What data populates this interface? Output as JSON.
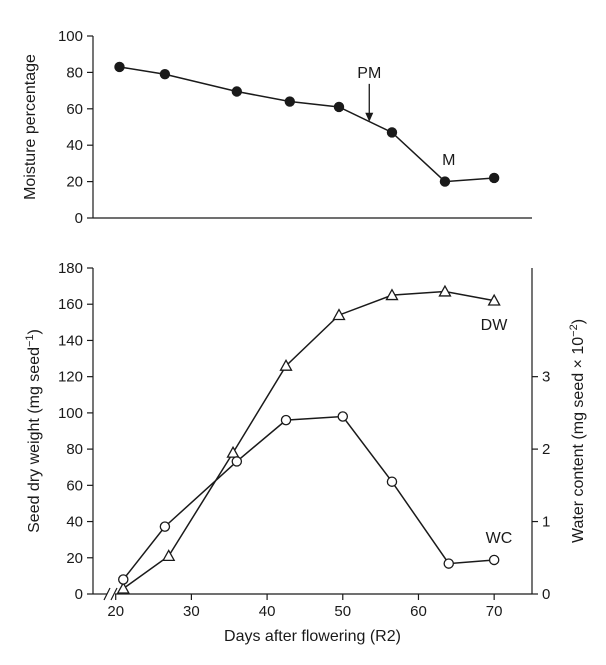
{
  "chart_data": [
    {
      "type": "line",
      "ylabel": "Moisture percentage",
      "ylim": [
        0,
        100
      ],
      "yticks": [
        0,
        20,
        40,
        60,
        80,
        100
      ],
      "xlim": [
        17,
        75
      ],
      "series": [
        {
          "name": "",
          "marker": "filled-circle",
          "x": [
            20.5,
            26.5,
            36,
            43,
            49.5,
            56.5,
            63.5,
            70
          ],
          "y": [
            83,
            79,
            69.5,
            64,
            61,
            47,
            20,
            22
          ]
        }
      ],
      "annotations": [
        {
          "label": "PM",
          "x": 53.5,
          "y": 77,
          "arrow_to_y": 54
        },
        {
          "label": "M",
          "x": 64,
          "y": 29
        }
      ]
    },
    {
      "type": "line",
      "xlabel": "Days after flowering (R2)",
      "ylabel": "Seed dry weight (mg seed⁻¹)",
      "y2label": "Water content (mg seed × 10⁻²)",
      "xlim": [
        17,
        75
      ],
      "xticks": [
        20,
        30,
        40,
        50,
        60,
        70
      ],
      "ylim": [
        0,
        180
      ],
      "yticks": [
        0,
        20,
        40,
        60,
        80,
        100,
        120,
        140,
        160,
        180
      ],
      "y2lim": [
        0,
        4.5
      ],
      "y2ticks": [
        0,
        1,
        2,
        3
      ],
      "axis_break": true,
      "series": [
        {
          "name": "DW",
          "marker": "open-triangle",
          "axis": "left",
          "x": [
            21,
            27,
            35.5,
            42.5,
            49.5,
            56.5,
            63.5,
            70
          ],
          "y": [
            3,
            21,
            78,
            126,
            154,
            165,
            167,
            162
          ]
        },
        {
          "name": "WC",
          "marker": "open-circle",
          "axis": "right",
          "x": [
            21,
            26.5,
            36,
            42.5,
            50,
            56.5,
            64,
            70
          ],
          "y": [
            0.2,
            0.93,
            1.83,
            2.4,
            2.45,
            1.55,
            0.42,
            0.47
          ]
        }
      ]
    }
  ]
}
